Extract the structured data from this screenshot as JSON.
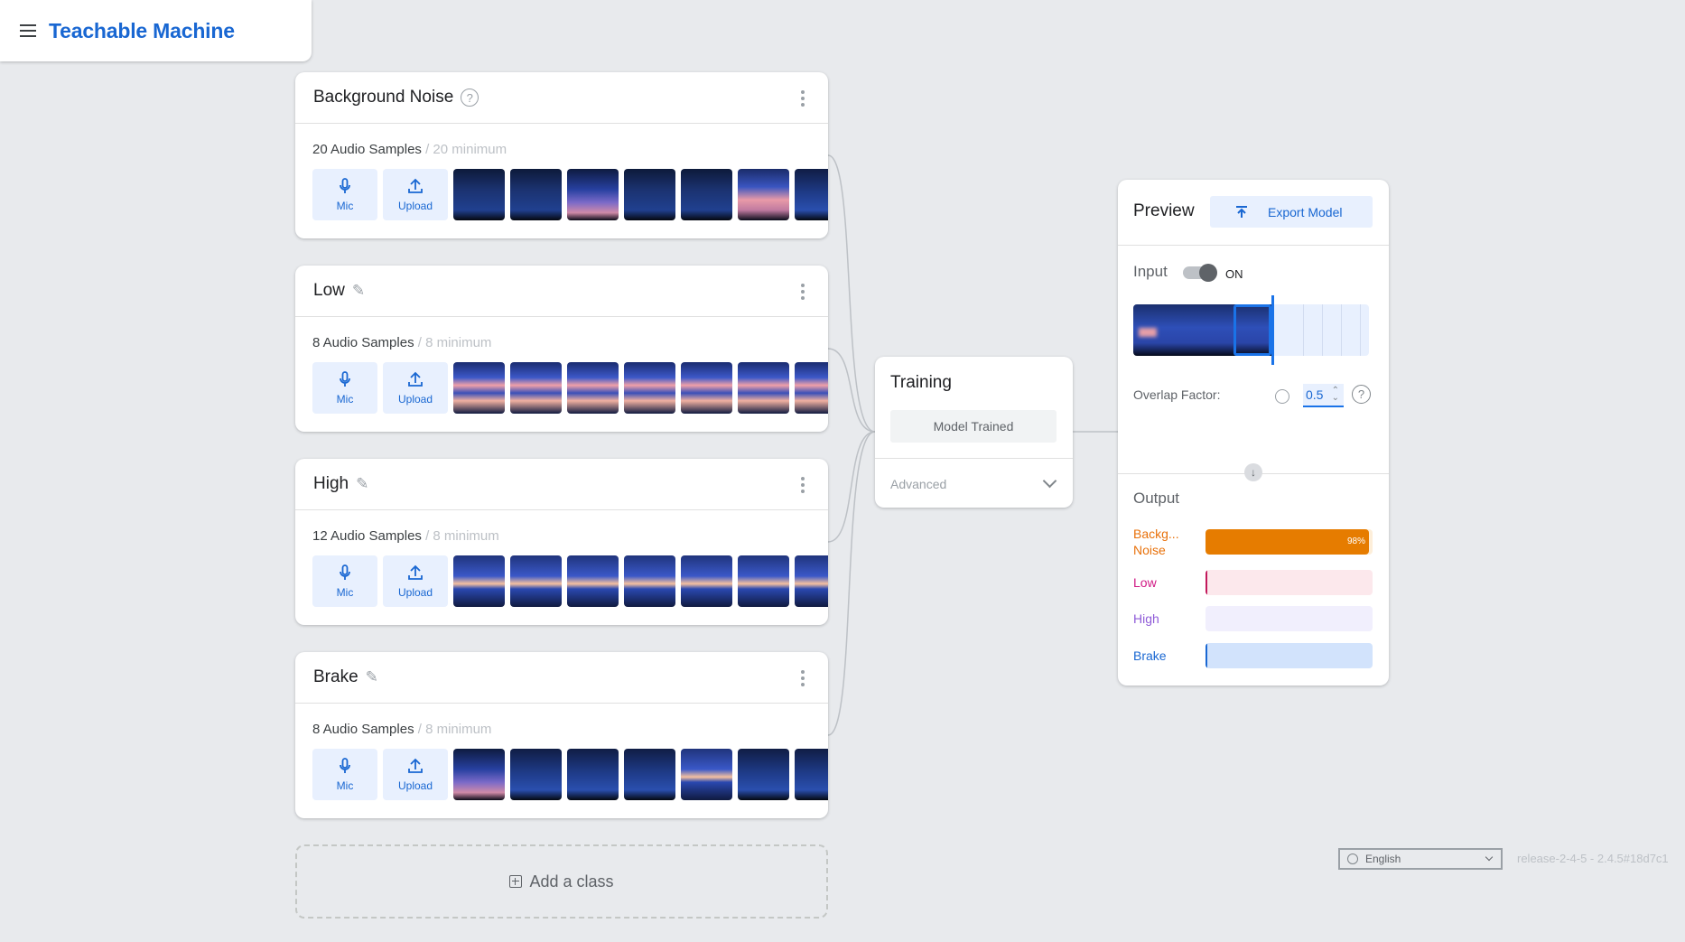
{
  "app": {
    "title": "Teachable Machine",
    "menu_icon": "hamburger-menu-icon"
  },
  "classes": [
    {
      "name": "Background Noise",
      "title_icon": "help-circle-icon",
      "samples": "20 Audio Samples",
      "minimum": " / 20 minimum",
      "mic_label": "Mic",
      "upload_label": "Upload",
      "thumbs": [
        0,
        0,
        2,
        0,
        0,
        3,
        1
      ]
    },
    {
      "name": "Low",
      "title_icon": "pencil-icon",
      "samples": "8 Audio Samples",
      "minimum": " / 8 minimum",
      "mic_label": "Mic",
      "upload_label": "Upload",
      "thumbs": [
        4,
        4,
        4,
        4,
        4,
        4,
        4
      ]
    },
    {
      "name": "High",
      "title_icon": "pencil-icon",
      "samples": "12 Audio Samples",
      "minimum": " / 8 minimum",
      "mic_label": "Mic",
      "upload_label": "Upload",
      "thumbs": [
        5,
        5,
        5,
        5,
        5,
        5,
        5
      ]
    },
    {
      "name": "Brake",
      "title_icon": "pencil-icon",
      "samples": "8 Audio Samples",
      "minimum": " / 8 minimum",
      "mic_label": "Mic",
      "upload_label": "Upload",
      "thumbs": [
        2,
        1,
        1,
        1,
        5,
        1,
        1
      ]
    }
  ],
  "add_class": {
    "label": "Add a class"
  },
  "training": {
    "title": "Training",
    "button": "Model Trained",
    "advanced": "Advanced"
  },
  "preview": {
    "title": "Preview",
    "export_label": "Export Model",
    "input_label": "Input",
    "input_toggle": "ON",
    "overlap_label": "Overlap Factor:",
    "overlap_value": "0.5",
    "output_label": "Output",
    "outputs": [
      {
        "label": "Backg... Noise",
        "percent": 98,
        "percent_text": "98%",
        "color": "#e67c00",
        "bg": "#fdeed9",
        "text_color": "#e8710a"
      },
      {
        "label": "Low",
        "percent": 1,
        "color": "#c2185b",
        "bg": "#fce8ec",
        "text_color": "#d01884"
      },
      {
        "label": "High",
        "percent": 0,
        "color": "#8f5bd8",
        "bg": "#f1effd",
        "text_color": "#8f5bd8"
      },
      {
        "label": "Brake",
        "percent": 1,
        "color": "#1967d2",
        "bg": "#d2e3fc",
        "text_color": "#1967d2"
      }
    ]
  },
  "footer": {
    "language": "English",
    "release": "release-2-4-5 - 2.4.5#18d7c1"
  }
}
